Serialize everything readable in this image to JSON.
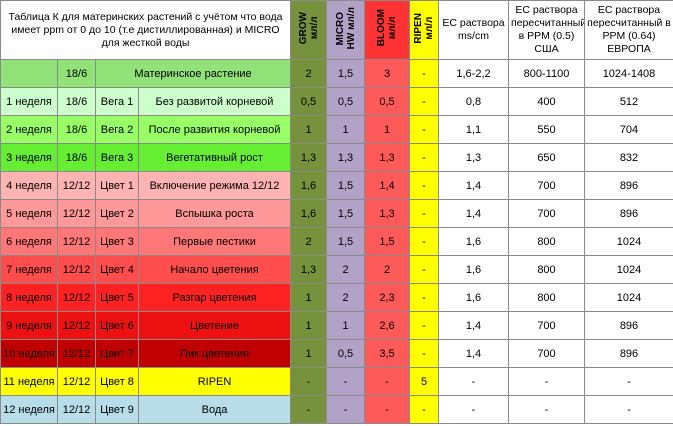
{
  "header": {
    "title": "Таблица К для материнских растений с учётом что вода имеет ppm от 0 до 10 (т.е дистиллированная) и MICRO для жесткой воды",
    "grow": [
      "GROW",
      "мл/л"
    ],
    "micro": [
      "MICRO",
      "HW мл/л"
    ],
    "bloom": [
      "BLOOM",
      "мл/л"
    ],
    "ripen": [
      "RIPEN",
      "мл/л"
    ],
    "ec": "EC раствора ms/cm",
    "ppm_usa": "EC раствора пересчитанный в PPM (0.5) США",
    "ppm_eu": "EC раствора пересчитанный в PPM (0.64) ЕВРОПА"
  },
  "rows": [
    {
      "light": "18/6",
      "name": "Материнское растение",
      "grow": "2",
      "micro": "1,5",
      "bloom": "3",
      "ripen": "-",
      "ec": "1,6-2,2",
      "ppm_usa": "800-1100",
      "ppm_eu": "1024-1408"
    },
    {
      "week": "1 неделя",
      "light": "18/6",
      "stage": "Вега 1",
      "name": "Без развитой корневой",
      "grow": "0,5",
      "micro": "0,5",
      "bloom": "0,5",
      "ripen": "-",
      "ec": "0,8",
      "ppm_usa": "400",
      "ppm_eu": "512"
    },
    {
      "week": "2 неделя",
      "light": "18/6",
      "stage": "Вега 2",
      "name": "После развития корневой",
      "grow": "1",
      "micro": "1",
      "bloom": "1",
      "ripen": "-",
      "ec": "1,1",
      "ppm_usa": "550",
      "ppm_eu": "704"
    },
    {
      "week": "3 неделя",
      "light": "18/6",
      "stage": "Вега 3",
      "name": "Вегетативный рост",
      "grow": "1,3",
      "micro": "1,3",
      "bloom": "1,3",
      "ripen": "-",
      "ec": "1,3",
      "ppm_usa": "650",
      "ppm_eu": "832"
    },
    {
      "week": "4 неделя",
      "light": "12/12",
      "stage": "Цвет 1",
      "name": "Включение режима 12/12",
      "grow": "1,6",
      "micro": "1,5",
      "bloom": "1,4",
      "ripen": "-",
      "ec": "1,4",
      "ppm_usa": "700",
      "ppm_eu": "896"
    },
    {
      "week": "5 неделя",
      "light": "12/12",
      "stage": "Цвет 2",
      "name": "Вспышка роста",
      "grow": "1,6",
      "micro": "1,5",
      "bloom": "1,3",
      "ripen": "-",
      "ec": "1,4",
      "ppm_usa": "700",
      "ppm_eu": "896"
    },
    {
      "week": "6 неделя",
      "light": "12/12",
      "stage": "Цвет 3",
      "name": "Первые пестики",
      "grow": "2",
      "micro": "1,5",
      "bloom": "1,5",
      "ripen": "-",
      "ec": "1,6",
      "ppm_usa": "800",
      "ppm_eu": "1024"
    },
    {
      "week": "7 неделя",
      "light": "12/12",
      "stage": "Цвет 4",
      "name": "Начало цветения",
      "grow": "1,3",
      "micro": "2",
      "bloom": "2",
      "ripen": "-",
      "ec": "1,6",
      "ppm_usa": "800",
      "ppm_eu": "1024"
    },
    {
      "week": "8 неделя",
      "light": "12/12",
      "stage": "Цвет 5",
      "name": "Разгар цветения",
      "grow": "1",
      "micro": "2",
      "bloom": "2,3",
      "ripen": "-",
      "ec": "1,6",
      "ppm_usa": "800",
      "ppm_eu": "1024"
    },
    {
      "week": "9 неделя",
      "light": "12/12",
      "stage": "Цвет 6",
      "name": "Цветение",
      "grow": "1",
      "micro": "1",
      "bloom": "2,6",
      "ripen": "-",
      "ec": "1,4",
      "ppm_usa": "700",
      "ppm_eu": "896"
    },
    {
      "week": "10 неделя",
      "light": "12/12",
      "stage": "Цвет 7",
      "name": "Пик цветения",
      "grow": "1",
      "micro": "0,5",
      "bloom": "3,5",
      "ripen": "-",
      "ec": "1,4",
      "ppm_usa": "700",
      "ppm_eu": "896"
    },
    {
      "week": "11 неделя",
      "light": "12/12",
      "stage": "Цвет 8",
      "name": "RIPEN",
      "grow": "-",
      "micro": "-",
      "bloom": "-",
      "ripen": "5",
      "ec": "-",
      "ppm_usa": "-",
      "ppm_eu": "-"
    },
    {
      "week": "12 неделя",
      "light": "12/12",
      "stage": "Цвет 9",
      "name": "Вода",
      "grow": "-",
      "micro": "-",
      "bloom": "-",
      "ripen": "-",
      "ec": "-",
      "ppm_usa": "-",
      "ppm_eu": "-"
    }
  ]
}
